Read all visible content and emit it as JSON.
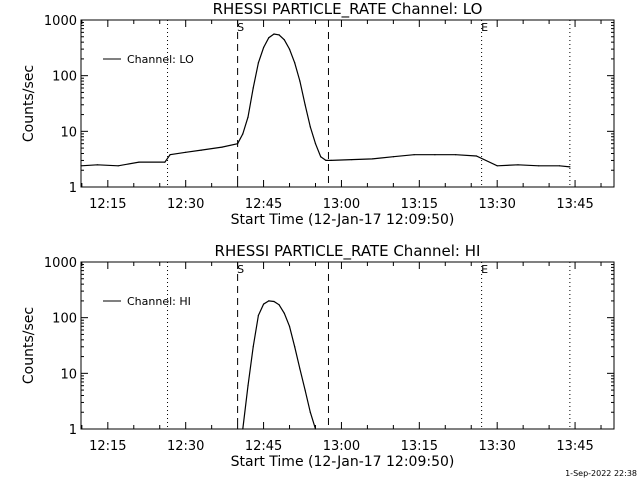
{
  "footer_timestamp": "1-Sep-2022 22:38",
  "chart_data": [
    {
      "type": "line",
      "title": "RHESSI PARTICLE_RATE Channel: LO",
      "xlabel": "Start Time (12-Jan-17 12:09:50)",
      "ylabel": "Counts/sec",
      "yscale": "log",
      "ylim": [
        1,
        1000
      ],
      "xlim": [
        "12:09:50",
        "13:52:30"
      ],
      "x_ticks": [
        "12:15",
        "12:30",
        "12:45",
        "13:00",
        "13:15",
        "13:30",
        "13:45"
      ],
      "y_ticks": [
        "1",
        "10",
        "100",
        "1000"
      ],
      "grid": false,
      "legend_position": "top-left",
      "series": [
        {
          "name": "Channel: LO",
          "x": [
            "12:09:50",
            "12:13:00",
            "12:17:00",
            "12:21:00",
            "12:26:00",
            "12:27:00",
            "12:30:00",
            "12:33:00",
            "12:37:00",
            "12:40:00",
            "12:41:00",
            "12:42:00",
            "12:43:00",
            "12:44:00",
            "12:45:00",
            "12:46:00",
            "12:47:00",
            "12:48:00",
            "12:49:00",
            "12:50:00",
            "12:51:00",
            "12:52:00",
            "12:53:00",
            "12:54:00",
            "12:55:00",
            "12:56:00",
            "12:57:00",
            "12:58:00",
            "13:02:00",
            "13:06:00",
            "13:10:00",
            "13:14:00",
            "13:18:00",
            "13:22:00",
            "13:26:00",
            "13:30:00",
            "13:34:00",
            "13:38:00",
            "13:42:00",
            "13:44:00"
          ],
          "y": [
            2.4,
            2.5,
            2.4,
            2.8,
            2.8,
            3.8,
            4.2,
            4.6,
            5.2,
            6,
            9,
            18,
            60,
            170,
            320,
            480,
            560,
            540,
            440,
            300,
            170,
            80,
            30,
            12,
            6,
            3.5,
            3,
            3,
            3.1,
            3.2,
            3.5,
            3.8,
            3.8,
            3.8,
            3.6,
            2.4,
            2.5,
            2.4,
            2.4,
            2.3
          ]
        }
      ],
      "markers": [
        {
          "label": "S",
          "time": "12:40:00",
          "style": "dashed"
        },
        {
          "label": "",
          "time": "12:57:30",
          "style": "dashed"
        },
        {
          "label": "",
          "time": "12:26:30",
          "style": "dotted"
        },
        {
          "label": "E",
          "time": "13:27:00",
          "style": "dotted"
        },
        {
          "label": "",
          "time": "13:44:00",
          "style": "dotted"
        }
      ]
    },
    {
      "type": "line",
      "title": "RHESSI PARTICLE_RATE Channel: HI",
      "xlabel": "Start Time (12-Jan-17 12:09:50)",
      "ylabel": "Counts/sec",
      "yscale": "log",
      "ylim": [
        1,
        1000
      ],
      "xlim": [
        "12:09:50",
        "13:52:30"
      ],
      "x_ticks": [
        "12:15",
        "12:30",
        "12:45",
        "13:00",
        "13:15",
        "13:30",
        "13:45"
      ],
      "y_ticks": [
        "1",
        "10",
        "100",
        "1000"
      ],
      "grid": false,
      "legend_position": "top-left",
      "series": [
        {
          "name": "Channel: HI",
          "x": [
            "12:41:00",
            "12:42:00",
            "12:43:00",
            "12:44:00",
            "12:45:00",
            "12:46:00",
            "12:47:00",
            "12:48:00",
            "12:49:00",
            "12:50:00",
            "12:51:00",
            "12:52:00",
            "12:53:00",
            "12:54:00",
            "12:55:00"
          ],
          "y": [
            1,
            6,
            30,
            110,
            175,
            200,
            195,
            170,
            120,
            70,
            30,
            12,
            5,
            2,
            1
          ]
        }
      ],
      "markers": [
        {
          "label": "S",
          "time": "12:40:00",
          "style": "dashed"
        },
        {
          "label": "",
          "time": "12:57:30",
          "style": "dashed"
        },
        {
          "label": "",
          "time": "12:26:30",
          "style": "dotted"
        },
        {
          "label": "E",
          "time": "13:27:00",
          "style": "dotted"
        },
        {
          "label": "",
          "time": "13:44:00",
          "style": "dotted"
        }
      ]
    }
  ]
}
